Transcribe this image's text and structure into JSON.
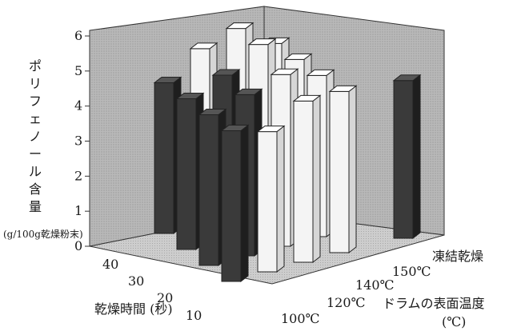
{
  "chart_data": {
    "type": "bar",
    "y_axis_label": "ポリフェノール含量",
    "y_axis_unit": "(g/100g乾燥粉末)",
    "x_axis_label": "乾燥時間 (秒)",
    "drum_axis_label": "ドラムの表面温度",
    "drum_axis_unit": "(℃)",
    "y_ticks": [
      "0",
      "1",
      "2",
      "3",
      "4",
      "5",
      "6"
    ],
    "ylim": [
      0,
      6
    ],
    "time_categories": [
      "10",
      "20",
      "30",
      "40"
    ],
    "temp_categories": [
      "100℃",
      "120℃",
      "140℃",
      "150℃",
      "凍結乾燥"
    ],
    "grid": false,
    "bars": [
      {
        "time": "40",
        "temp": "100℃",
        "value": 4.3,
        "tone": "dark"
      },
      {
        "time": "30",
        "temp": "100℃",
        "value": 4.3,
        "tone": "dark"
      },
      {
        "time": "20",
        "temp": "100℃",
        "value": 4.3,
        "tone": "dark"
      },
      {
        "time": "10",
        "temp": "100℃",
        "value": 4.3,
        "tone": "dark"
      },
      {
        "time": "40",
        "temp": "120℃",
        "value": 5.0,
        "tone": "light"
      },
      {
        "time": "30",
        "temp": "120℃",
        "value": 4.7,
        "tone": "dark"
      },
      {
        "time": "20",
        "temp": "120℃",
        "value": 4.6,
        "tone": "dark"
      },
      {
        "time": "10",
        "temp": "120℃",
        "value": 4.0,
        "tone": "light"
      },
      {
        "time": "40",
        "temp": "140℃",
        "value": 5.3,
        "tone": "light"
      },
      {
        "time": "30",
        "temp": "140℃",
        "value": 5.3,
        "tone": "light"
      },
      {
        "time": "20",
        "temp": "140℃",
        "value": 4.9,
        "tone": "light"
      },
      {
        "time": "10",
        "temp": "140℃",
        "value": 4.6,
        "tone": "light"
      },
      {
        "time": "40",
        "temp": "150℃",
        "value": 4.6,
        "tone": "light"
      },
      {
        "time": "30",
        "temp": "150℃",
        "value": 4.6,
        "tone": "light"
      },
      {
        "time": "20",
        "temp": "150℃",
        "value": 4.6,
        "tone": "light"
      },
      {
        "time": "10",
        "temp": "150℃",
        "value": 4.6,
        "tone": "light"
      },
      {
        "time": "",
        "temp": "凍結乾燥",
        "value": 4.5,
        "tone": "dark"
      }
    ]
  }
}
